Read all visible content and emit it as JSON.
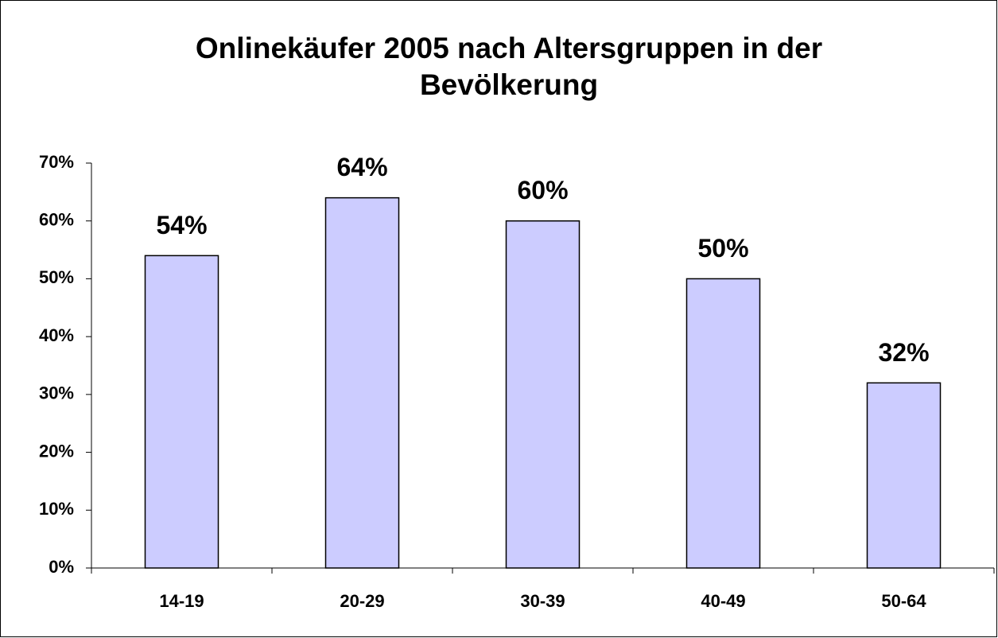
{
  "chart_data": {
    "type": "bar",
    "title": "Onlinekäufer 2005 nach Altersgruppen in der Bevölkerung",
    "categories": [
      "14-19",
      "20-29",
      "30-39",
      "40-49",
      "50-64"
    ],
    "values": [
      54,
      64,
      60,
      50,
      32
    ],
    "value_labels": [
      "54%",
      "64%",
      "60%",
      "50%",
      "32%"
    ],
    "color": "#ccccff",
    "ylim": [
      0,
      70
    ],
    "yticks": [
      {
        "value": 0,
        "label": "0%"
      },
      {
        "value": 10,
        "label": "10%"
      },
      {
        "value": 20,
        "label": "20%"
      },
      {
        "value": 30,
        "label": "30%"
      },
      {
        "value": 40,
        "label": "40%"
      },
      {
        "value": 50,
        "label": "50%"
      },
      {
        "value": 60,
        "label": "60%"
      },
      {
        "value": 70,
        "label": "70%"
      }
    ],
    "grid": false
  }
}
